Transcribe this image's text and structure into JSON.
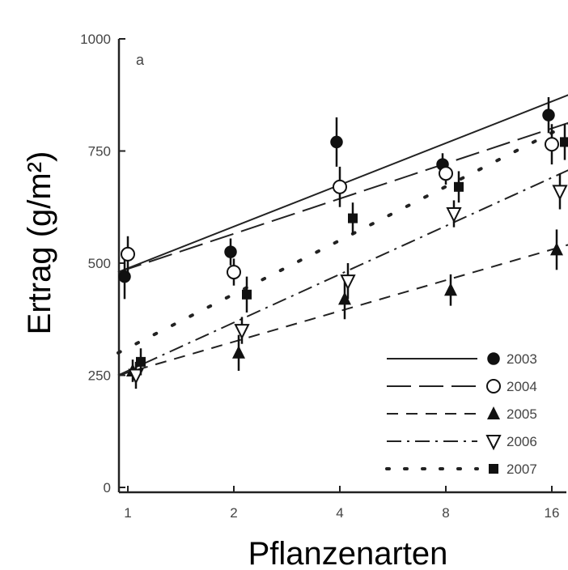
{
  "chart_data": {
    "type": "scatter",
    "panel_label": "a",
    "xlabel": "Pflanzenarten",
    "ylabel": "Ertrag (g/m²)",
    "x_scale": "log2",
    "x_ticks": [
      1,
      2,
      4,
      8,
      16
    ],
    "x_tick_labels": [
      "1",
      "2",
      "4",
      "8",
      "16"
    ],
    "y_ticks": [
      0,
      250,
      500,
      750,
      1000
    ],
    "y_tick_labels": [
      "0",
      "250",
      "500",
      "750",
      "1000"
    ],
    "ylim": [
      0,
      1000
    ],
    "legend_position": "bottom-right",
    "series": [
      {
        "name": "2003",
        "marker": "circle-filled",
        "line": "solid",
        "points": [
          {
            "x": 1,
            "y": 470,
            "err": 50
          },
          {
            "x": 2,
            "y": 525,
            "err": 30
          },
          {
            "x": 4,
            "y": 770,
            "err": 55
          },
          {
            "x": 8,
            "y": 720,
            "err": 25
          },
          {
            "x": 16,
            "y": 830,
            "err": 40
          }
        ],
        "fit": [
          480,
          860
        ]
      },
      {
        "name": "2004",
        "marker": "circle-open",
        "line": "long-dash",
        "points": [
          {
            "x": 1,
            "y": 520,
            "err": 40
          },
          {
            "x": 2,
            "y": 480,
            "err": 30
          },
          {
            "x": 4,
            "y": 670,
            "err": 45
          },
          {
            "x": 8,
            "y": 700,
            "err": 25
          },
          {
            "x": 16,
            "y": 765,
            "err": 45
          }
        ],
        "fit": [
          480,
          800
        ]
      },
      {
        "name": "2005",
        "marker": "triangle-up-filled",
        "line": "short-dash",
        "points": [
          {
            "x": 1,
            "y": 260,
            "err": 25
          },
          {
            "x": 2,
            "y": 300,
            "err": 40
          },
          {
            "x": 4,
            "y": 420,
            "err": 45
          },
          {
            "x": 8,
            "y": 440,
            "err": 35
          },
          {
            "x": 16,
            "y": 530,
            "err": 45
          }
        ],
        "fit": [
          250,
          530
        ]
      },
      {
        "name": "2006",
        "marker": "triangle-down-open",
        "line": "dash-dot",
        "points": [
          {
            "x": 1,
            "y": 250,
            "err": 30
          },
          {
            "x": 2,
            "y": 350,
            "err": 30
          },
          {
            "x": 4,
            "y": 460,
            "err": 40
          },
          {
            "x": 8,
            "y": 610,
            "err": 30
          },
          {
            "x": 16,
            "y": 660,
            "err": 40
          }
        ],
        "fit": [
          250,
          690
        ]
      },
      {
        "name": "2007",
        "marker": "square-filled",
        "line": "dotted",
        "points": [
          {
            "x": 1,
            "y": 280,
            "err": 30
          },
          {
            "x": 2,
            "y": 430,
            "err": 40
          },
          {
            "x": 4,
            "y": 600,
            "err": 35
          },
          {
            "x": 8,
            "y": 670,
            "err": 35
          },
          {
            "x": 16,
            "y": 770,
            "err": 40
          }
        ],
        "fit": [
          300,
          790
        ]
      }
    ]
  }
}
